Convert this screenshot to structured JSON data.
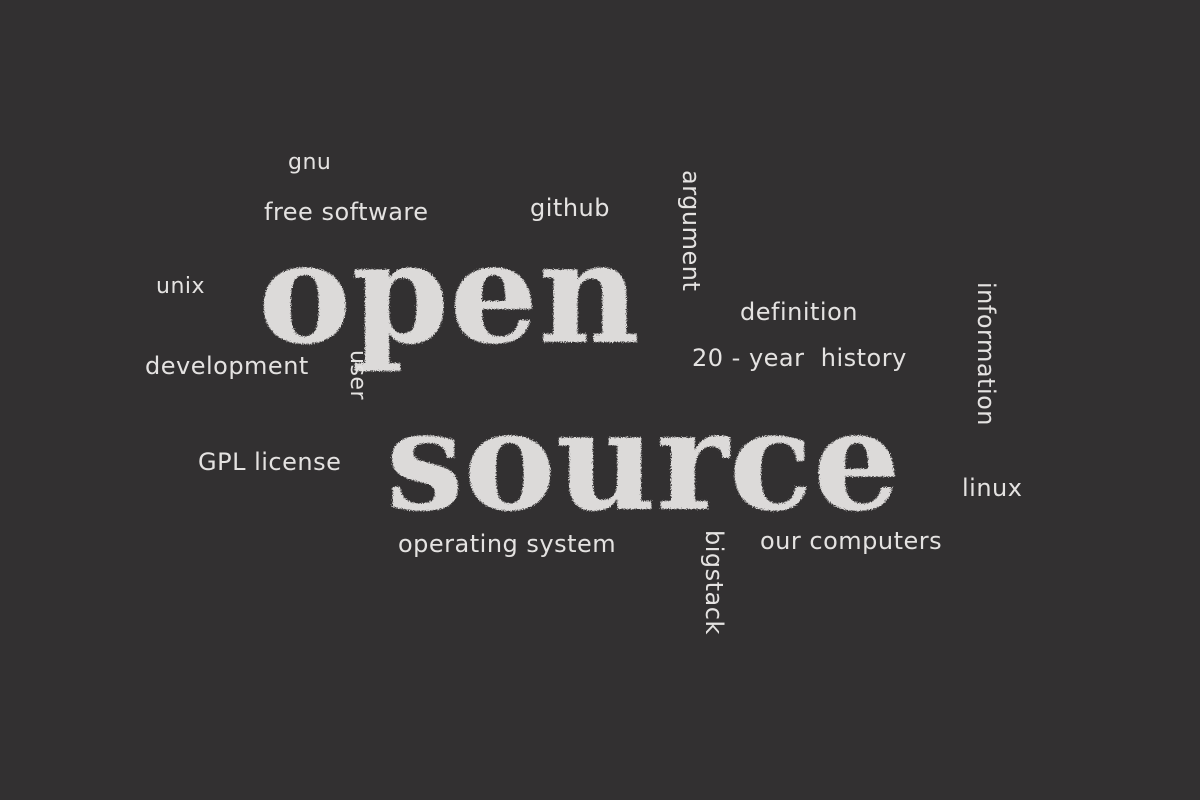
{
  "cloud": {
    "main": {
      "open": "open",
      "source": "source"
    },
    "words": {
      "gnu": "gnu",
      "free_software": "free software",
      "github": "github",
      "argument": "argument",
      "unix": "unix",
      "definition": "definition",
      "information": "information",
      "development": "development",
      "user": "user",
      "history_20_year": "20 - year  history",
      "gpl_license": "GPL license",
      "linux": "linux",
      "operating_system": "operating system",
      "bigstack": "bigstack",
      "our_computers": "our computers"
    }
  },
  "colors": {
    "background": "#323031",
    "text": "#e4e2e1"
  }
}
